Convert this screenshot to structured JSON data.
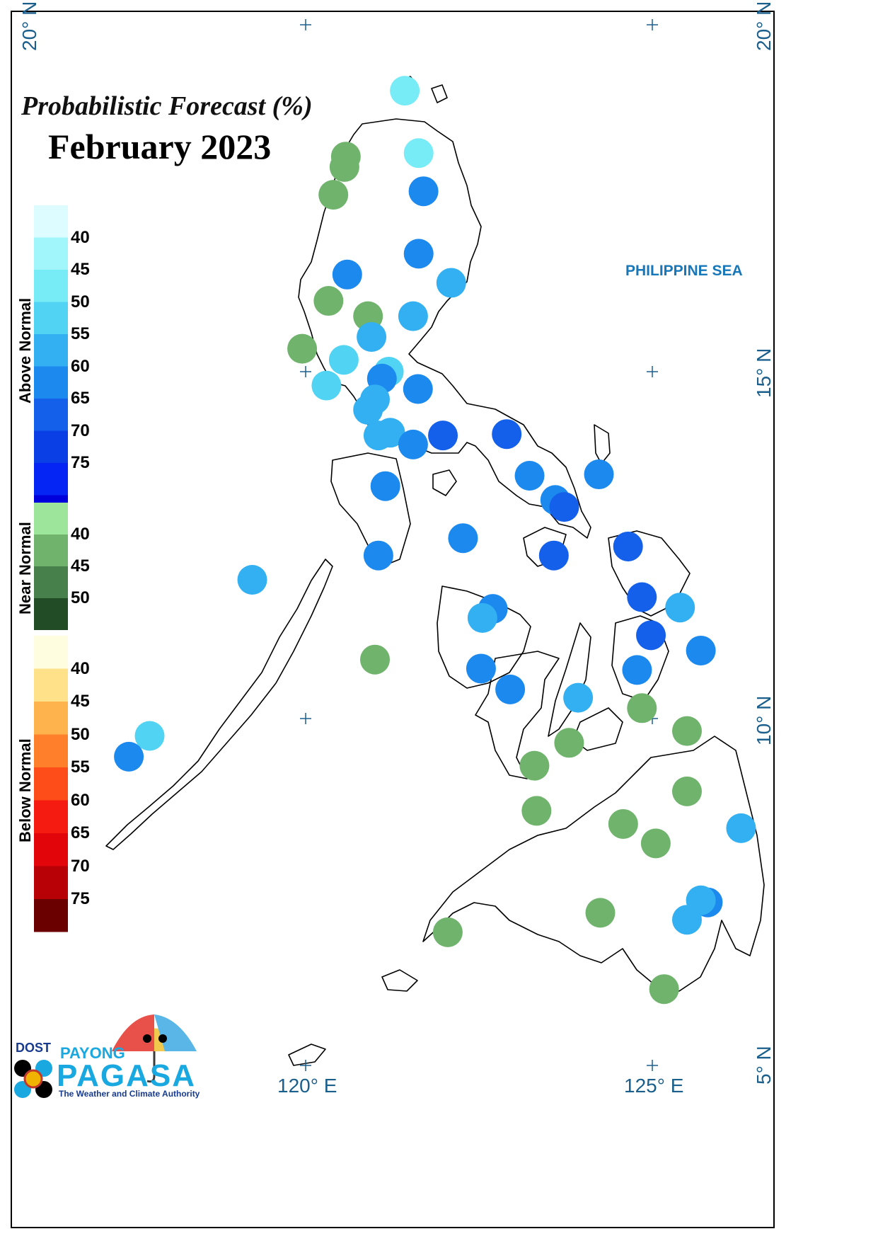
{
  "title": "Probabilistic Forecast (%)",
  "subtitle": "February 2023",
  "sea_label": "PHILIPPINE SEA",
  "legend": {
    "above": {
      "label": "Above Normal",
      "colors": [
        "#dcfcff",
        "#a0f6fb",
        "#78ecf6",
        "#51d4f3",
        "#32b0f2",
        "#1c89ef",
        "#1560ea",
        "#0a3fe6",
        "#0425f3",
        "#0000dd",
        "#0000b4"
      ],
      "ticks": [
        "40",
        "45",
        "50",
        "55",
        "60",
        "65",
        "70",
        "75"
      ]
    },
    "near": {
      "label": "Near Normal",
      "colors": [
        "#9de59a",
        "#6fb36c",
        "#47804a",
        "#214c25"
      ],
      "ticks": [
        "40",
        "45",
        "50"
      ]
    },
    "below": {
      "label": "Below Normal",
      "colors": [
        "#fffde0",
        "#ffe18a",
        "#ffb34d",
        "#ff7f2b",
        "#ff4d1a",
        "#f51b10",
        "#e2050a",
        "#b80007",
        "#6b0000"
      ],
      "ticks": [
        "40",
        "45",
        "50",
        "55",
        "60",
        "65",
        "70",
        "75"
      ]
    }
  },
  "grid": {
    "lat_labels": [
      "20° N",
      "15° N",
      "10° N",
      "5° N"
    ],
    "lon_labels": [
      "120° E",
      "125° E"
    ],
    "lat_left_top": "20° N",
    "lat_right_top": "20° N"
  },
  "stations": [
    {
      "lon": 121.43,
      "lat": 19.05,
      "cat": "above",
      "pct": 45
    },
    {
      "lon": 121.63,
      "lat": 18.15,
      "cat": "above",
      "pct": 45
    },
    {
      "lon": 120.58,
      "lat": 18.1,
      "cat": "near",
      "pct": 40
    },
    {
      "lon": 120.56,
      "lat": 17.95,
      "cat": "near",
      "pct": 40
    },
    {
      "lon": 120.4,
      "lat": 17.55,
      "cat": "near",
      "pct": 40
    },
    {
      "lon": 121.7,
      "lat": 17.6,
      "cat": "above",
      "pct": 60
    },
    {
      "lon": 121.63,
      "lat": 16.7,
      "cat": "above",
      "pct": 60
    },
    {
      "lon": 120.6,
      "lat": 16.4,
      "cat": "above",
      "pct": 60
    },
    {
      "lon": 122.1,
      "lat": 16.28,
      "cat": "above",
      "pct": 55
    },
    {
      "lon": 120.33,
      "lat": 16.02,
      "cat": "near",
      "pct": 40
    },
    {
      "lon": 120.9,
      "lat": 15.8,
      "cat": "near",
      "pct": 40
    },
    {
      "lon": 121.55,
      "lat": 15.8,
      "cat": "above",
      "pct": 55
    },
    {
      "lon": 120.95,
      "lat": 15.5,
      "cat": "above",
      "pct": 55
    },
    {
      "lon": 119.95,
      "lat": 15.33,
      "cat": "near",
      "pct": 40
    },
    {
      "lon": 120.55,
      "lat": 15.17,
      "cat": "above",
      "pct": 50
    },
    {
      "lon": 121.2,
      "lat": 15.0,
      "cat": "above",
      "pct": 50
    },
    {
      "lon": 121.1,
      "lat": 14.9,
      "cat": "above",
      "pct": 60
    },
    {
      "lon": 120.3,
      "lat": 14.8,
      "cat": "above",
      "pct": 50
    },
    {
      "lon": 121.62,
      "lat": 14.75,
      "cat": "above",
      "pct": 60
    },
    {
      "lon": 121.0,
      "lat": 14.6,
      "cat": "above",
      "pct": 55
    },
    {
      "lon": 120.9,
      "lat": 14.45,
      "cat": "above",
      "pct": 55
    },
    {
      "lon": 121.05,
      "lat": 14.08,
      "cat": "above",
      "pct": 55
    },
    {
      "lon": 121.22,
      "lat": 14.12,
      "cat": "above",
      "pct": 55
    },
    {
      "lon": 121.55,
      "lat": 13.95,
      "cat": "above",
      "pct": 60
    },
    {
      "lon": 121.98,
      "lat": 14.08,
      "cat": "above",
      "pct": 65
    },
    {
      "lon": 122.9,
      "lat": 14.1,
      "cat": "above",
      "pct": 65
    },
    {
      "lon": 121.15,
      "lat": 13.35,
      "cat": "above",
      "pct": 60
    },
    {
      "lon": 123.23,
      "lat": 13.5,
      "cat": "above",
      "pct": 60
    },
    {
      "lon": 124.23,
      "lat": 13.52,
      "cat": "above",
      "pct": 60
    },
    {
      "lon": 123.6,
      "lat": 13.15,
      "cat": "above",
      "pct": 60
    },
    {
      "lon": 123.73,
      "lat": 13.05,
      "cat": "above",
      "pct": 65
    },
    {
      "lon": 122.27,
      "lat": 12.6,
      "cat": "above",
      "pct": 60
    },
    {
      "lon": 121.05,
      "lat": 12.35,
      "cat": "above",
      "pct": 60
    },
    {
      "lon": 123.58,
      "lat": 12.35,
      "cat": "above",
      "pct": 65
    },
    {
      "lon": 124.65,
      "lat": 12.48,
      "cat": "above",
      "pct": 65
    },
    {
      "lon": 119.23,
      "lat": 12.0,
      "cat": "above",
      "pct": 55
    },
    {
      "lon": 124.85,
      "lat": 11.75,
      "cat": "above",
      "pct": 65
    },
    {
      "lon": 125.4,
      "lat": 11.6,
      "cat": "above",
      "pct": 55
    },
    {
      "lon": 122.7,
      "lat": 11.58,
      "cat": "above",
      "pct": 60
    },
    {
      "lon": 122.55,
      "lat": 11.45,
      "cat": "above",
      "pct": 55
    },
    {
      "lon": 124.98,
      "lat": 11.2,
      "cat": "above",
      "pct": 65
    },
    {
      "lon": 125.7,
      "lat": 10.98,
      "cat": "above",
      "pct": 60
    },
    {
      "lon": 121.0,
      "lat": 10.85,
      "cat": "near",
      "pct": 40
    },
    {
      "lon": 122.53,
      "lat": 10.72,
      "cat": "above",
      "pct": 60
    },
    {
      "lon": 124.78,
      "lat": 10.7,
      "cat": "above",
      "pct": 60
    },
    {
      "lon": 122.95,
      "lat": 10.42,
      "cat": "above",
      "pct": 60
    },
    {
      "lon": 123.93,
      "lat": 10.3,
      "cat": "above",
      "pct": 55
    },
    {
      "lon": 124.85,
      "lat": 10.15,
      "cat": "near",
      "pct": 40
    },
    {
      "lon": 125.5,
      "lat": 9.82,
      "cat": "near",
      "pct": 40
    },
    {
      "lon": 117.75,
      "lat": 9.75,
      "cat": "above",
      "pct": 50
    },
    {
      "lon": 117.45,
      "lat": 9.45,
      "cat": "above",
      "pct": 60
    },
    {
      "lon": 123.8,
      "lat": 9.65,
      "cat": "near",
      "pct": 40
    },
    {
      "lon": 123.3,
      "lat": 9.32,
      "cat": "near",
      "pct": 40
    },
    {
      "lon": 125.5,
      "lat": 8.95,
      "cat": "near",
      "pct": 40
    },
    {
      "lon": 123.33,
      "lat": 8.67,
      "cat": "near",
      "pct": 40
    },
    {
      "lon": 124.58,
      "lat": 8.48,
      "cat": "near",
      "pct": 40
    },
    {
      "lon": 126.28,
      "lat": 8.42,
      "cat": "above",
      "pct": 55
    },
    {
      "lon": 125.05,
      "lat": 8.2,
      "cat": "near",
      "pct": 40
    },
    {
      "lon": 125.8,
      "lat": 7.35,
      "cat": "above",
      "pct": 60
    },
    {
      "lon": 125.7,
      "lat": 7.38,
      "cat": "above",
      "pct": 55
    },
    {
      "lon": 125.5,
      "lat": 7.1,
      "cat": "above",
      "pct": 55
    },
    {
      "lon": 124.25,
      "lat": 7.2,
      "cat": "near",
      "pct": 40
    },
    {
      "lon": 122.05,
      "lat": 6.92,
      "cat": "near",
      "pct": 40
    },
    {
      "lon": 125.17,
      "lat": 6.1,
      "cat": "near",
      "pct": 40
    }
  ],
  "logo": {
    "dost": "DOST",
    "payong": "PAYONG",
    "pagasa": "PAGASA",
    "tagline": "The Weather and Climate Authority"
  }
}
